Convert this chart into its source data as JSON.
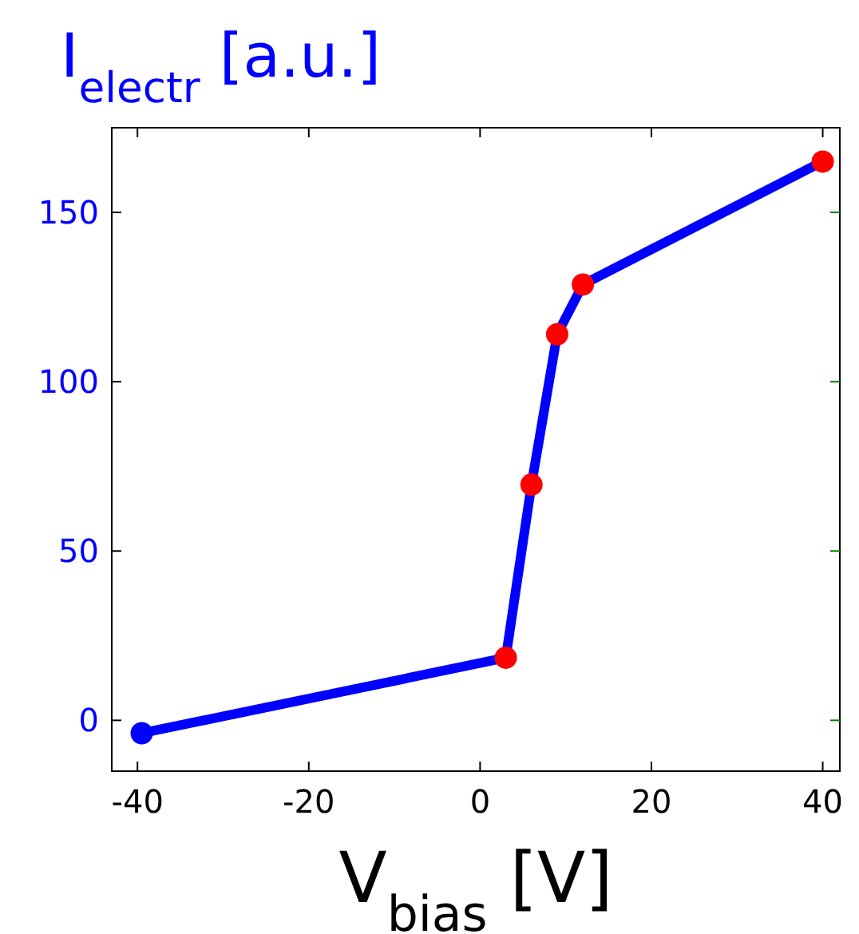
{
  "chart_data": {
    "type": "line",
    "ylabel": "I$_{electr}$ [a.u.]",
    "xlabel": "V$_{bias}$ [V]",
    "x": [
      -39.5,
      3,
      6,
      9,
      12,
      40
    ],
    "series": [
      {
        "color": "#0000ff",
        "values": [
          -3.8,
          18.5,
          69.6,
          114,
          128.7,
          165
        ],
        "colors": [
          "#0000ff",
          "#ff0000",
          "#ff0000",
          "#ff0000",
          "#ff0000",
          "#ff0000"
        ]
      }
    ],
    "xlim": [
      -43,
      42
    ],
    "ylim": [
      -15,
      175
    ],
    "xticks": [
      -40,
      -20,
      0,
      20,
      40
    ],
    "yticks": [
      0,
      50,
      100,
      150
    ],
    "marker": "circle",
    "line_style": "solid"
  }
}
